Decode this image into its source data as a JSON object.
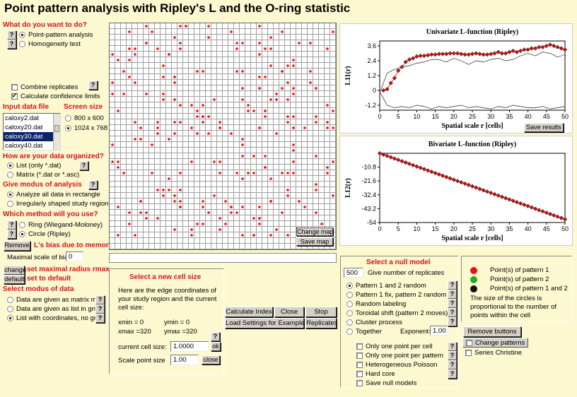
{
  "title": "Point pattern analysis with Ripley's L and the O-ring statistic",
  "help_glyph": "?",
  "left": {
    "q1": "What do you want to do?",
    "task_options": [
      "Point-pattern analysis",
      "Homogeneity test"
    ],
    "combine_replicates": "Combine replicates",
    "confidence_limits": "Calculate confidence limits",
    "input_file_label": "Input data file",
    "screen_size_label": "Screen size",
    "files": [
      "caloxy2.dat",
      "caloxy20.dat",
      "caloxy30.dat",
      "caloxy40.dat"
    ],
    "screen_sizes": [
      "800 x 600",
      "1024 x 768"
    ],
    "q2": "How are your data organized?",
    "org_list": "List  (only *.dat)",
    "org_matrix": "Matrix (*.dat or *.asc)",
    "q3": "Give modus of analysis",
    "modus_rect": "Analyze all data in rectangle",
    "modus_irreg": "Irregularly shaped study region",
    "q4": "Which method will you use?",
    "method_ring": "Ring (Wiegand-Moloney)",
    "method_circle": "Circle (Ripley)",
    "remove_label": "Remove",
    "bias_label": "L's bias due to memory",
    "max_bias_label": "Maximal scale of bias:",
    "max_bias_value": "0",
    "change_label": "change",
    "set_max_radius": "set maximal radius rmax",
    "default_label": "default",
    "set_default": "set to default",
    "q5": "Select modus of data",
    "data_matrix": "Data are given as matrix map",
    "data_list_grid": "Data are given as list in grid",
    "data_list_coords": "List with coordinates, no grid"
  },
  "map": {
    "change_map": "Change map",
    "save_map": "Save map"
  },
  "cell": {
    "title": "Select a new cell size",
    "desc": "Here are the edge coordinates of your study region and the current cell size:",
    "xmin": "xmin = 0",
    "ymin": "ymin = 0",
    "xmax": "xmax =320",
    "ymax": "ymax =320",
    "cell_size_label": "current cell size:",
    "cell_size_value": "1.0000",
    "ok": "ok",
    "scale_label": "Scale point size",
    "scale_value": "1.00",
    "close": "close"
  },
  "actions": {
    "calc_index": "Calculate Index",
    "close": "Close",
    "stop": "Stop",
    "load_settings": "Load Settings for Example",
    "replicates": "Replicates"
  },
  "null_model": {
    "title": "Select a null model",
    "replicates_value": "500",
    "replicates_label": "Give number of replicates",
    "options": [
      "Pattern 1 and 2 random",
      "Pattern 1 fix, pattern 2 random",
      "Random labeling",
      "Toroidal shift (pattern 2 moves)",
      "Cluster process",
      "Together"
    ],
    "exponent_label": "Exponent=",
    "exponent_value": "1.00",
    "checks": [
      "Only one point per cell",
      "Only one point per pattern",
      "Heterogeneous Poisson",
      "Hard core",
      "Save null models"
    ]
  },
  "legend": {
    "items": [
      "Point(s) of pattern 1",
      "Point(s) of pattern 2",
      "Point(s) of pattern 1 and 2"
    ],
    "colors": [
      "#ee1111",
      "#22aa22",
      "#111111"
    ],
    "note": "The size of the circles is proportional to the number of points within the cell"
  },
  "right_buttons": {
    "remove_buttons": "Remove buttons",
    "change_patterns": "Change patterns",
    "series_christine": "Series Christine"
  },
  "save_results": "Save results",
  "chart_data": [
    {
      "type": "line",
      "title": "Univariate L-function (Ripley)",
      "xlabel": "Spatial scale r [cells]",
      "ylabel": "L11(r)",
      "xlim": [
        0,
        50
      ],
      "ylim": [
        -1.6,
        4.0
      ],
      "xticks": [
        0,
        5,
        10,
        15,
        20,
        25,
        30,
        35,
        40,
        45,
        50
      ],
      "yticks": [
        "3.6",
        "2.4",
        "1.2",
        "0",
        "-1.2"
      ],
      "ytick_values": [
        3.6,
        2.4,
        1.2,
        0,
        -1.2
      ],
      "grid": false,
      "series": [
        {
          "name": "",
          "color": "#cc1111",
          "marker": "diamond",
          "x": [
            1,
            2,
            3,
            4,
            5,
            6,
            7,
            8,
            9,
            10,
            11,
            12,
            13,
            14,
            15,
            16,
            17,
            18,
            19,
            20,
            21,
            22,
            23,
            24,
            25,
            26,
            27,
            28,
            29,
            30,
            31,
            32,
            33,
            34,
            35,
            36,
            37,
            38,
            39,
            40,
            41,
            42,
            43,
            44,
            45,
            46,
            47,
            48,
            49,
            50
          ],
          "y": [
            0.0,
            0.1,
            0.6,
            1.0,
            1.6,
            1.9,
            2.3,
            2.5,
            2.6,
            2.75,
            2.8,
            2.8,
            2.85,
            2.9,
            2.9,
            2.95,
            2.95,
            2.95,
            3.0,
            3.0,
            3.0,
            2.95,
            2.9,
            2.9,
            2.95,
            3.0,
            2.95,
            2.9,
            2.9,
            2.95,
            3.0,
            3.1,
            3.0,
            3.0,
            3.1,
            3.2,
            3.1,
            3.2,
            3.3,
            3.3,
            3.4,
            3.4,
            3.5,
            3.5,
            3.6,
            3.7,
            3.6,
            3.5,
            3.4,
            3.3
          ]
        },
        {
          "name": "",
          "color": "#555555",
          "x": [
            0,
            2,
            4,
            6,
            8,
            10,
            12,
            14,
            16,
            18,
            20,
            22,
            24,
            26,
            28,
            30,
            32,
            34,
            36,
            38,
            40,
            42,
            44,
            46,
            48,
            50
          ],
          "y": [
            -0.2,
            1.4,
            1.7,
            1.9,
            2.0,
            2.2,
            2.3,
            2.5,
            2.5,
            2.3,
            2.6,
            2.4,
            2.1,
            2.4,
            2.3,
            2.5,
            2.6,
            2.4,
            2.5,
            2.8,
            3.0,
            2.8,
            3.1,
            3.0,
            2.7,
            2.9
          ]
        },
        {
          "name": "",
          "color": "#555555",
          "x": [
            0,
            2,
            4,
            6,
            8,
            10,
            12,
            14,
            16,
            18,
            20,
            22,
            24,
            26,
            28,
            30,
            32,
            34,
            36,
            38,
            40,
            42,
            44,
            46,
            48,
            50
          ],
          "y": [
            -0.1,
            -1.2,
            -1.4,
            -1.3,
            -1.4,
            -1.2,
            -1.3,
            -1.5,
            -1.3,
            -1.4,
            -1.3,
            -1.2,
            -1.4,
            -1.3,
            -1.4,
            -1.5,
            -1.3,
            -1.4,
            -1.2,
            -1.3,
            -1.4,
            -1.4,
            -1.3,
            -1.5,
            -1.4,
            -1.3
          ]
        }
      ]
    },
    {
      "type": "line",
      "title": "Bivariate L-function (Ripley)",
      "xlabel": "Spatial scale r [cells]",
      "ylabel": "L12(r)",
      "xlim": [
        0,
        50
      ],
      "ylim": [
        -54,
        0
      ],
      "xticks": [
        0,
        5,
        10,
        15,
        20,
        25,
        30,
        35,
        40,
        45,
        50
      ],
      "yticks": [
        "-10.8",
        "-21.6",
        "-32.4",
        "-43.2",
        "-54"
      ],
      "ytick_values": [
        -10.8,
        -21.6,
        -32.4,
        -43.2,
        -54
      ],
      "grid": false,
      "series": [
        {
          "name": "",
          "color": "#cc1111",
          "marker": "diamond",
          "x_start": 0,
          "x_end": 50,
          "y_start": 0,
          "y_end": -51.5,
          "count": 51
        }
      ]
    }
  ]
}
